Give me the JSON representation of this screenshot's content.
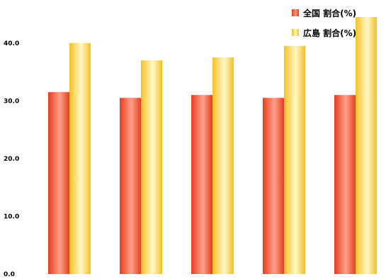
{
  "chart_data": {
    "type": "bar",
    "categories": [
      "",
      "",
      "",
      "",
      ""
    ],
    "series": [
      {
        "name": "全国 割合(%)",
        "values": [
          31.5,
          30.5,
          31.0,
          30.5,
          31.0
        ],
        "color": "#e53e1e"
      },
      {
        "name": "広島 割合(%)",
        "values": [
          40.0,
          37.0,
          37.5,
          39.5,
          44.5
        ],
        "color": "#f5c025"
      }
    ],
    "yticks": [
      "0.0",
      "10.0",
      "20.0",
      "30.0",
      "40.0"
    ],
    "ylim": [
      0,
      45
    ],
    "legend_position": "top-right",
    "grid": false
  }
}
